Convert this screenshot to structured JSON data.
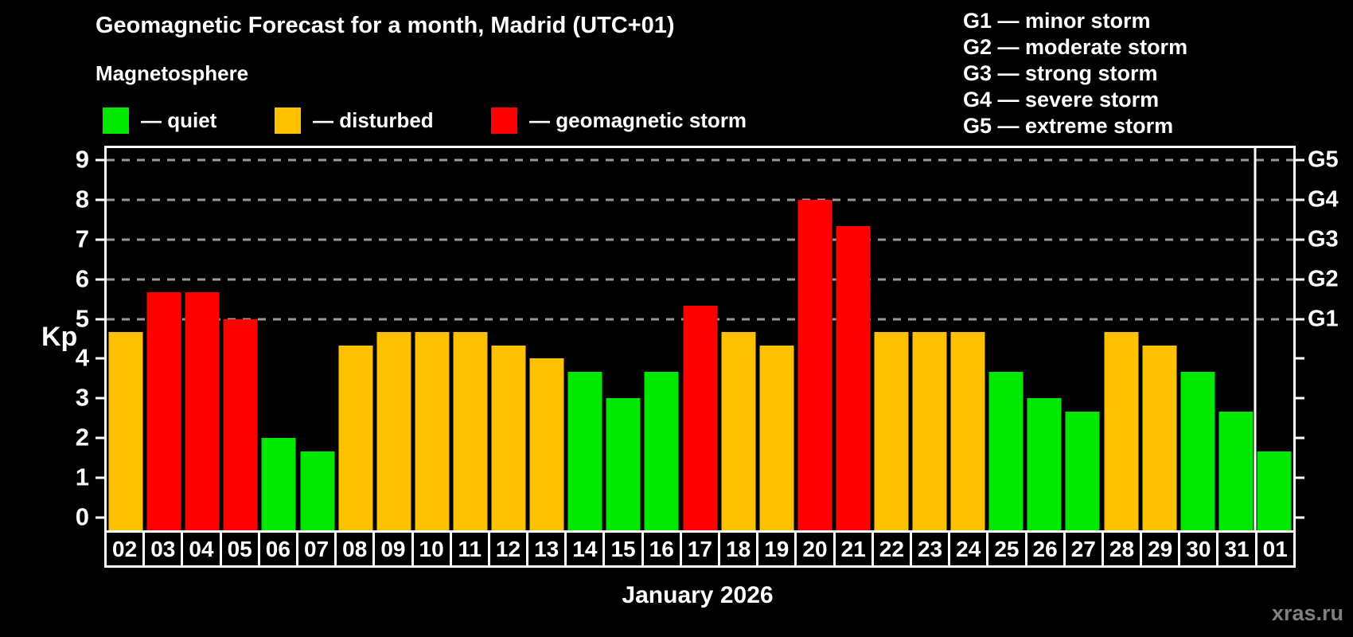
{
  "header": {
    "title": "Geomagnetic Forecast for a month, Madrid (UTC+01)",
    "subtitle": "Magnetosphere"
  },
  "legend": {
    "items": [
      {
        "key": "quiet",
        "label": "— quiet"
      },
      {
        "key": "disturbed",
        "label": "— disturbed"
      },
      {
        "key": "storm",
        "label": "— geomagnetic storm"
      }
    ]
  },
  "g_scale_legend": {
    "lines": [
      "G1 — minor storm",
      "G2 — moderate storm",
      "G3 — strong storm",
      "G4 — severe storm",
      "G5 — extreme storm"
    ]
  },
  "colors": {
    "quiet": "#00e800",
    "disturbed": "#ffc000",
    "storm": "#ff0000",
    "gridline": "#999999",
    "axis": "#ffffff",
    "background": "#000000",
    "watermark": "#7f7f7f"
  },
  "axes": {
    "y_left_label": "Kp",
    "y_left_ticks": [
      0,
      1,
      2,
      3,
      4,
      5,
      6,
      7,
      8,
      9
    ],
    "y_right_labels": [
      {
        "kp": 5,
        "label": "G1"
      },
      {
        "kp": 6,
        "label": "G2"
      },
      {
        "kp": 7,
        "label": "G3"
      },
      {
        "kp": 8,
        "label": "G4"
      },
      {
        "kp": 9,
        "label": "G5"
      }
    ],
    "x_label": "January 2026"
  },
  "watermark": "xras.ru",
  "chart_data": {
    "type": "bar",
    "title": "Geomagnetic Forecast for a month, Madrid (UTC+01)",
    "xlabel": "January 2026",
    "ylabel": "Kp",
    "ylim": [
      -0.32,
      9.3
    ],
    "legend_position": "top",
    "grid": "dashed horizontal lines at Kp 5,6,7,8,9 only",
    "gridlines_kp": [
      5,
      6,
      7,
      8,
      9
    ],
    "month_separator_index": 30,
    "categories": [
      "02",
      "03",
      "04",
      "05",
      "06",
      "07",
      "08",
      "09",
      "10",
      "11",
      "12",
      "13",
      "14",
      "15",
      "16",
      "17",
      "18",
      "19",
      "20",
      "21",
      "22",
      "23",
      "24",
      "25",
      "26",
      "27",
      "28",
      "29",
      "30",
      "31",
      "01"
    ],
    "values": [
      4.67,
      5.67,
      5.67,
      5.0,
      2.0,
      1.67,
      4.33,
      4.67,
      4.67,
      4.67,
      4.33,
      4.0,
      3.67,
      3.0,
      3.67,
      5.33,
      4.67,
      4.33,
      8.0,
      7.33,
      4.67,
      4.67,
      4.67,
      3.67,
      3.0,
      2.67,
      4.67,
      4.33,
      3.67,
      2.67,
      1.67
    ],
    "statuses": [
      "disturbed",
      "storm",
      "storm",
      "storm",
      "quiet",
      "quiet",
      "disturbed",
      "disturbed",
      "disturbed",
      "disturbed",
      "disturbed",
      "disturbed",
      "quiet",
      "quiet",
      "quiet",
      "storm",
      "disturbed",
      "disturbed",
      "storm",
      "storm",
      "disturbed",
      "disturbed",
      "disturbed",
      "quiet",
      "quiet",
      "quiet",
      "disturbed",
      "disturbed",
      "quiet",
      "quiet",
      "quiet"
    ],
    "bars": [
      {
        "day": "02",
        "kp": 4.67,
        "status": "disturbed"
      },
      {
        "day": "03",
        "kp": 5.67,
        "status": "storm"
      },
      {
        "day": "04",
        "kp": 5.67,
        "status": "storm"
      },
      {
        "day": "05",
        "kp": 5.0,
        "status": "storm"
      },
      {
        "day": "06",
        "kp": 2.0,
        "status": "quiet"
      },
      {
        "day": "07",
        "kp": 1.67,
        "status": "quiet"
      },
      {
        "day": "08",
        "kp": 4.33,
        "status": "disturbed"
      },
      {
        "day": "09",
        "kp": 4.67,
        "status": "disturbed"
      },
      {
        "day": "10",
        "kp": 4.67,
        "status": "disturbed"
      },
      {
        "day": "11",
        "kp": 4.67,
        "status": "disturbed"
      },
      {
        "day": "12",
        "kp": 4.33,
        "status": "disturbed"
      },
      {
        "day": "13",
        "kp": 4.0,
        "status": "disturbed"
      },
      {
        "day": "14",
        "kp": 3.67,
        "status": "quiet"
      },
      {
        "day": "15",
        "kp": 3.0,
        "status": "quiet"
      },
      {
        "day": "16",
        "kp": 3.67,
        "status": "quiet"
      },
      {
        "day": "17",
        "kp": 5.33,
        "status": "storm"
      },
      {
        "day": "18",
        "kp": 4.67,
        "status": "disturbed"
      },
      {
        "day": "19",
        "kp": 4.33,
        "status": "disturbed"
      },
      {
        "day": "20",
        "kp": 8.0,
        "status": "storm"
      },
      {
        "day": "21",
        "kp": 7.33,
        "status": "storm"
      },
      {
        "day": "22",
        "kp": 4.67,
        "status": "disturbed"
      },
      {
        "day": "23",
        "kp": 4.67,
        "status": "disturbed"
      },
      {
        "day": "24",
        "kp": 4.67,
        "status": "disturbed"
      },
      {
        "day": "25",
        "kp": 3.67,
        "status": "quiet"
      },
      {
        "day": "26",
        "kp": 3.0,
        "status": "quiet"
      },
      {
        "day": "27",
        "kp": 2.67,
        "status": "quiet"
      },
      {
        "day": "28",
        "kp": 4.67,
        "status": "disturbed"
      },
      {
        "day": "29",
        "kp": 4.33,
        "status": "disturbed"
      },
      {
        "day": "30",
        "kp": 3.67,
        "status": "quiet"
      },
      {
        "day": "31",
        "kp": 2.67,
        "status": "quiet"
      },
      {
        "day": "01",
        "kp": 1.67,
        "status": "quiet"
      }
    ]
  }
}
